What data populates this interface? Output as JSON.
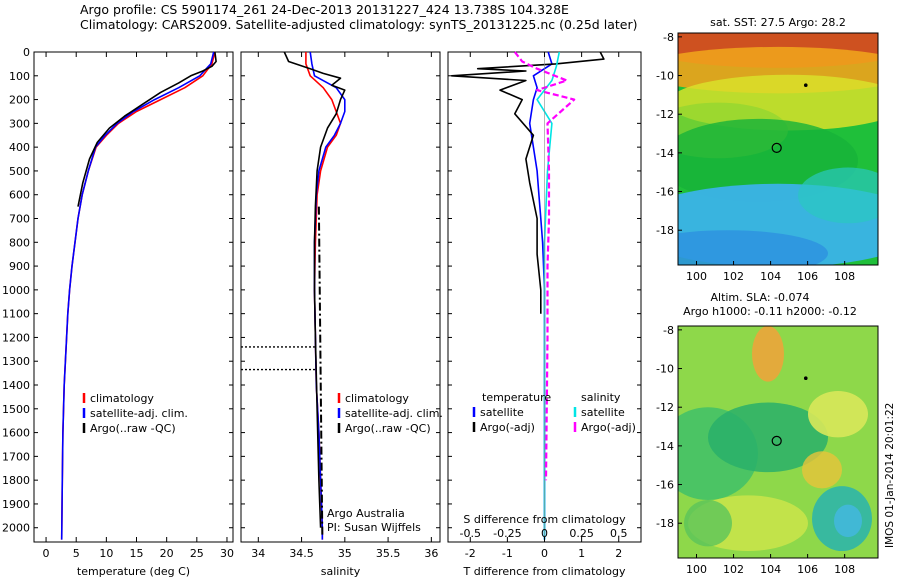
{
  "header": {
    "line1": "Argo profile: CS 5901174_261 24-Dec-2013 20131227_424 13.738S 104.328E",
    "line2": "Climatology: CARS2009. Satellite-adjusted climatology: synTS_20131225.nc (0.25d later)"
  },
  "side_label": "IMOS 01-Jan-2014 20:01:22",
  "colors": {
    "climatology": "#ff0000",
    "satellite": "#0000ff",
    "argo": "#000000",
    "salinity_satellite": "#00e5e5",
    "salinity_argo": "#ff00ff"
  },
  "chart_data": [
    {
      "type": "line",
      "xlabel": "temperature (deg C)",
      "ylabel": "",
      "xlim": [
        -2,
        31
      ],
      "ylim": [
        2060,
        0
      ],
      "xticks": [
        "0",
        "5",
        "10",
        "15",
        "20",
        "25",
        "30"
      ],
      "yticks": [
        "0",
        "100",
        "200",
        "300",
        "400",
        "500",
        "600",
        "700",
        "800",
        "900",
        "1000",
        "1100",
        "1200",
        "1300",
        "1400",
        "1500",
        "1600",
        "1700",
        "1800",
        "1900",
        "2000"
      ],
      "legend": [
        "climatology",
        "satellite-adj. clim.",
        "Argo(..raw -QC)"
      ],
      "series": [
        {
          "name": "climatology",
          "x": [
            28,
            27.5,
            26,
            23,
            19,
            15,
            12,
            10,
            8.3,
            7,
            6,
            5.3,
            4.8,
            4.3,
            3.9,
            3.6,
            3.4,
            3.2,
            3.0,
            2.8,
            2.7,
            2.6
          ],
          "y": [
            0,
            50,
            100,
            150,
            200,
            250,
            300,
            350,
            400,
            500,
            600,
            700,
            800,
            900,
            1000,
            1100,
            1200,
            1300,
            1400,
            1600,
            1800,
            2050
          ]
        },
        {
          "name": "satellite-adj. clim.",
          "x": [
            27.8,
            27.3,
            25.5,
            22,
            18,
            14.5,
            11.8,
            9.8,
            8.2,
            7,
            6,
            5.3,
            4.8,
            4.3,
            3.9,
            3.6,
            3.4,
            3.2,
            3.0,
            2.8,
            2.7,
            2.6
          ],
          "y": [
            0,
            50,
            100,
            150,
            200,
            250,
            300,
            350,
            400,
            500,
            600,
            700,
            800,
            900,
            1000,
            1100,
            1200,
            1300,
            1400,
            1600,
            1800,
            2050
          ]
        },
        {
          "name": "Argo(..raw -QC)",
          "x": [
            28,
            28.2,
            27.5,
            26,
            24,
            22,
            19,
            16,
            13,
            10.5,
            8.5,
            7.2,
            6.1,
            5.3
          ],
          "y": [
            0,
            40,
            60,
            80,
            100,
            130,
            170,
            220,
            270,
            320,
            380,
            450,
            550,
            650
          ]
        }
      ]
    },
    {
      "type": "line",
      "xlabel": "salinity",
      "ylabel": "",
      "xlim": [
        33.8,
        36.1
      ],
      "ylim": [
        2060,
        0
      ],
      "xticks": [
        "34",
        "34.5",
        "35",
        "35.5",
        "36"
      ],
      "legend": [
        "climatology",
        "satellite-adj. clim.",
        "Argo(..raw -QC)"
      ],
      "annotations": [
        "Argo Australia",
        "PI: Susan Wijffels"
      ],
      "series": [
        {
          "name": "climatology",
          "x": [
            34.55,
            34.55,
            34.6,
            34.75,
            34.85,
            34.9,
            34.95,
            34.9,
            34.8,
            34.72,
            34.68,
            34.66,
            34.65,
            34.66,
            34.67,
            34.7,
            34.72,
            34.73,
            34.74,
            34.74
          ],
          "y": [
            0,
            50,
            100,
            150,
            200,
            250,
            300,
            350,
            400,
            500,
            600,
            800,
            1000,
            1200,
            1400,
            1600,
            1800,
            1900,
            2000,
            2050
          ]
        },
        {
          "name": "satellite-adj. clim.",
          "x": [
            34.6,
            34.62,
            34.65,
            34.9,
            35.0,
            35.0,
            34.95,
            34.88,
            34.78,
            34.7,
            34.67,
            34.65,
            34.65,
            34.66,
            34.67,
            34.7,
            34.72,
            34.73,
            34.74,
            34.74
          ],
          "y": [
            0,
            50,
            100,
            150,
            200,
            250,
            300,
            350,
            400,
            500,
            600,
            800,
            1000,
            1200,
            1400,
            1600,
            1800,
            1900,
            2000,
            2050
          ]
        },
        {
          "name": "Argo(..raw -QC)",
          "x": [
            34.3,
            34.35,
            34.6,
            34.75,
            34.95,
            34.85,
            35.0,
            34.95,
            34.9,
            34.8,
            34.72,
            34.68,
            34.66,
            34.65,
            34.65,
            34.66,
            34.68,
            34.7,
            34.72
          ],
          "y": [
            0,
            40,
            70,
            90,
            110,
            140,
            160,
            200,
            260,
            320,
            400,
            500,
            650,
            800,
            1000,
            1200,
            1500,
            1800,
            2000
          ]
        }
      ]
    },
    {
      "type": "line",
      "xlabel": "T difference from climatology",
      "ylabel": "",
      "xlim": [
        -2.6,
        2.6
      ],
      "ylim": [
        2060,
        0
      ],
      "xticks": [
        "-2",
        "-1",
        "0",
        "1",
        "2"
      ],
      "top_xlabel": "S difference from climatology",
      "top_xticks": [
        "-0.5",
        "-0.25",
        "0",
        "0.25",
        "0.5"
      ],
      "legend_titles": [
        "temperature",
        "salinity"
      ],
      "legend": [
        "satellite",
        "Argo(-adj)",
        "satellite",
        "Argo(-adj)"
      ],
      "series": [
        {
          "name": "satellite",
          "group": "temperature",
          "x": [
            0.1,
            0.2,
            -0.3,
            -0.2,
            -0.3,
            -0.4,
            -0.3,
            -0.2,
            -0.15,
            -0.1,
            -0.05,
            0,
            0,
            0
          ],
          "y": [
            0,
            50,
            100,
            150,
            200,
            300,
            400,
            500,
            600,
            700,
            800,
            1000,
            1500,
            2050
          ]
        },
        {
          "name": "Argo(-adj)",
          "group": "temperature",
          "x": [
            1.5,
            1.6,
            0.3,
            -1.8,
            -0.5,
            -2.5,
            -0.5,
            -1.2,
            -0.6,
            -0.8,
            -0.3,
            -0.5,
            -0.4,
            -0.2,
            -0.2,
            -0.1,
            -0.1
          ],
          "y": [
            0,
            30,
            50,
            70,
            80,
            100,
            120,
            160,
            200,
            260,
            350,
            450,
            550,
            700,
            850,
            1000,
            1100
          ]
        },
        {
          "name": "satellite",
          "group": "salinity",
          "x": [
            0.1,
            0.08,
            0.05,
            -0.05,
            0.05,
            0.02,
            0,
            0,
            0
          ],
          "y": [
            0,
            60,
            120,
            200,
            300,
            500,
            800,
            1200,
            2050
          ]
        },
        {
          "name": "Argo(-adj)",
          "group": "salinity",
          "x": [
            -0.2,
            -0.15,
            -0.05,
            0.15,
            -0.05,
            0.2,
            0.02,
            0.03,
            0.03,
            0.02,
            0.02,
            0.01
          ],
          "y": [
            0,
            40,
            70,
            120,
            160,
            200,
            300,
            500,
            700,
            900,
            1200,
            1800
          ]
        }
      ]
    },
    {
      "type": "heatmap",
      "title": "sat. SST: 27.5 Argo: 28.2",
      "xlim": [
        99,
        109.8
      ],
      "ylim": [
        -19.8,
        -7.8
      ],
      "xticks": [
        "100",
        "102",
        "104",
        "106",
        "108"
      ],
      "yticks": [
        "-8",
        "-10",
        "-12",
        "-14",
        "-16",
        "-18"
      ],
      "marker": {
        "lon": 104.33,
        "lat": -13.74
      }
    },
    {
      "type": "heatmap",
      "title": "Altim. SLA: -0.074",
      "subtitle": "Argo h1000: -0.11 h2000: -0.12",
      "xlim": [
        99,
        109.8
      ],
      "ylim": [
        -19.8,
        -7.8
      ],
      "xticks": [
        "100",
        "102",
        "104",
        "106",
        "108"
      ],
      "yticks": [
        "-8",
        "-10",
        "-12",
        "-14",
        "-16",
        "-18"
      ],
      "marker": {
        "lon": 104.33,
        "lat": -13.74
      }
    }
  ]
}
